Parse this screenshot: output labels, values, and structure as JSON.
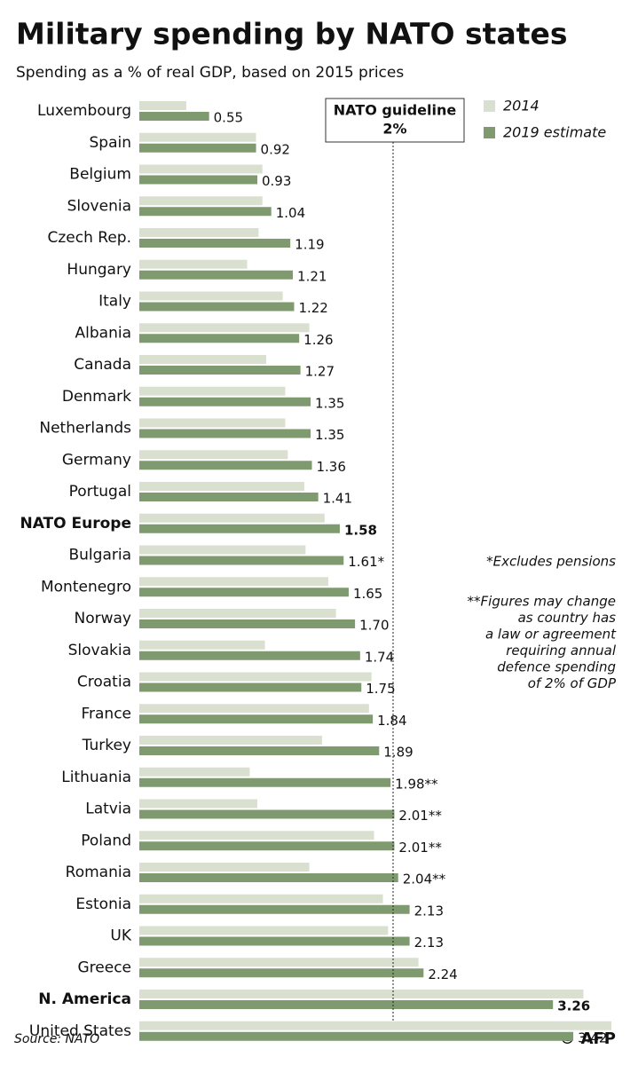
{
  "chart_data": {
    "type": "bar",
    "orientation": "horizontal",
    "title": "Military spending by NATO states",
    "subtitle": "Spending as a % of real GDP, based on 2015 prices",
    "categories": [
      "Luxembourg",
      "Spain",
      "Belgium",
      "Slovenia",
      "Czech Rep.",
      "Hungary",
      "Italy",
      "Albania",
      "Canada",
      "Denmark",
      "Netherlands",
      "Germany",
      "Portugal",
      "NATO Europe",
      "Bulgaria",
      "Montenegro",
      "Norway",
      "Slovakia",
      "Croatia",
      "France",
      "Turkey",
      "Lithuania",
      "Latvia",
      "Poland",
      "Romania",
      "Estonia",
      "UK",
      "Greece",
      "N. America",
      "United States"
    ],
    "series": [
      {
        "name": "2014",
        "color": "#d9e0d0",
        "values": [
          0.37,
          0.92,
          0.97,
          0.97,
          0.94,
          0.85,
          1.13,
          1.34,
          1.0,
          1.15,
          1.15,
          1.17,
          1.3,
          1.46,
          1.31,
          1.49,
          1.55,
          0.99,
          1.83,
          1.81,
          1.44,
          0.87,
          0.93,
          1.85,
          1.34,
          1.92,
          1.96,
          2.2,
          3.5,
          3.72
        ]
      },
      {
        "name": "2019 estimate",
        "color": "#7f9a6e",
        "values": [
          0.55,
          0.92,
          0.93,
          1.04,
          1.19,
          1.21,
          1.22,
          1.26,
          1.27,
          1.35,
          1.35,
          1.36,
          1.41,
          1.58,
          1.61,
          1.65,
          1.7,
          1.74,
          1.75,
          1.84,
          1.89,
          1.98,
          2.01,
          2.01,
          2.04,
          2.13,
          2.13,
          2.24,
          3.26,
          3.42
        ],
        "value_labels": [
          "0.55",
          "0.92",
          "0.93",
          "1.04",
          "1.19",
          "1.21",
          "1.22",
          "1.26",
          "1.27",
          "1.35",
          "1.35",
          "1.36",
          "1.41",
          "1.58",
          "1.61*",
          "1.65",
          "1.70",
          "1.74",
          "1.75",
          "1.84",
          "1.89",
          "1.98**",
          "2.01**",
          "2.01**",
          "2.04**",
          "2.13",
          "2.13",
          "2.24",
          "3.26",
          "3.42"
        ]
      }
    ],
    "xlim": [
      0,
      3.93
    ],
    "reference_line": {
      "value": 2,
      "label_lines": [
        "NATO guideline",
        "2%"
      ]
    },
    "notes": [
      [
        "*Excludes pensions"
      ],
      [
        "**Figures may change",
        "as country has",
        "a law or agreement",
        "requiring annual",
        "defence spending",
        "of 2% of GDP"
      ]
    ],
    "source": "Source: NATO",
    "credit": "© AFP"
  }
}
